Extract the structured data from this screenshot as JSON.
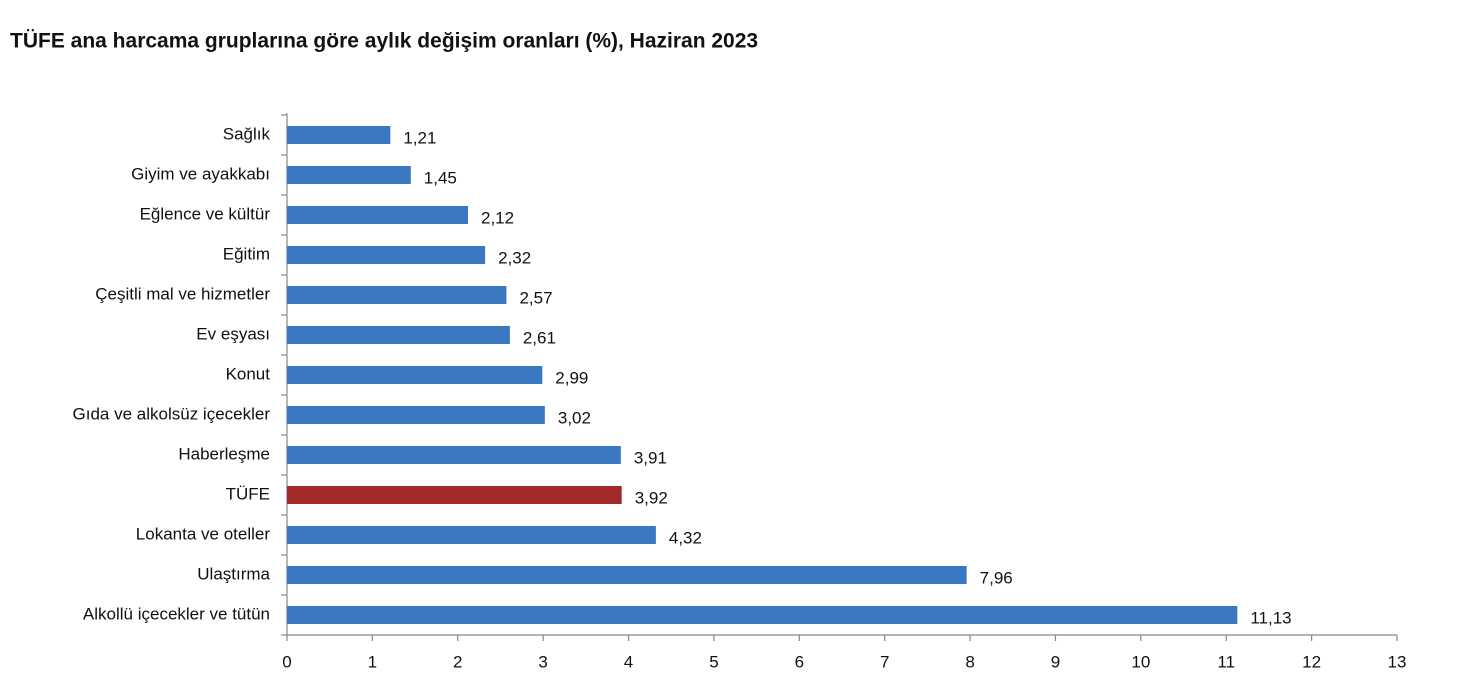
{
  "chart_data": {
    "type": "barh",
    "title": "TÜFE ana harcama gruplarına göre aylık değişim oranları (%), Haziran 2023",
    "categories": [
      "Sağlık",
      "Giyim ve ayakkabı",
      "Eğlence ve kültür",
      "Eğitim",
      "Çeşitli mal ve hizmetler",
      "Ev eşyası",
      "Konut",
      "Gıda ve alkolsüz içecekler",
      "Haberleşme",
      "TÜFE",
      "Lokanta ve oteller",
      "Ulaştırma",
      "Alkollü içecekler ve tütün"
    ],
    "values": [
      1.21,
      1.45,
      2.12,
      2.32,
      2.57,
      2.61,
      2.99,
      3.02,
      3.91,
      3.92,
      4.32,
      7.96,
      11.13
    ],
    "value_labels": [
      "1,21",
      "1,45",
      "2,12",
      "2,32",
      "2,57",
      "2,61",
      "2,99",
      "3,02",
      "3,91",
      "3,92",
      "4,32",
      "7,96",
      "11,13"
    ],
    "colors": [
      "#3a78c2",
      "#3a78c2",
      "#3a78c2",
      "#3a78c2",
      "#3a78c2",
      "#3a78c2",
      "#3a78c2",
      "#3a78c2",
      "#3a78c2",
      "#a32a2a",
      "#3a78c2",
      "#3a78c2",
      "#3a78c2"
    ],
    "xlim": [
      0,
      13
    ],
    "xticks": [
      0,
      1,
      2,
      3,
      4,
      5,
      6,
      7,
      8,
      9,
      10,
      11,
      12,
      13
    ]
  }
}
